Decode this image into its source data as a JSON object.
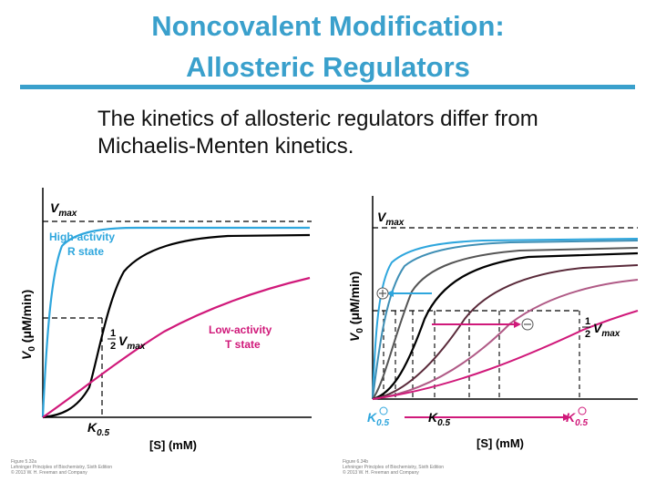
{
  "slide": {
    "title_line1": "Noncovalent Modification:",
    "title_line2": "Allosteric Regulators",
    "subtitle_line1": "The kinetics of allosteric regulators differ from",
    "subtitle_line2": "Michaelis-Menten kinetics."
  },
  "colors": {
    "title": "#3aa0cc",
    "r_state": "#2ea6dd",
    "t_state": "#d0197a",
    "michaelis": "#000000"
  },
  "left_panel": {
    "vmax_main": "V",
    "vmax_sub": "max",
    "r_state_line1": "High-activity",
    "r_state_line2": "R state",
    "t_state_line1": "Low-activity",
    "t_state_line2": "T state",
    "half_num": "1",
    "half_den": "2",
    "half_v": "V",
    "half_sub": "max",
    "k_main": "K",
    "k_sub": "0.5",
    "xlabel": "[S] (mM)",
    "ylabel_v": "V",
    "ylabel_sub": "0",
    "ylabel_rest": " (μM/min)",
    "caption_line1": "Figure 5.32a",
    "caption_line2": "Lehninger Principles of Biochemistry, Sixth Edition",
    "caption_line3": "© 2013 W. H. Freeman and Company"
  },
  "right_panel": {
    "vmax_main": "V",
    "vmax_sub": "max",
    "half_num": "1",
    "half_den": "2",
    "half_v": "V",
    "half_sub": "max",
    "k_main": "K",
    "k_sub": "0.5",
    "xlabel": "[S] (mM)",
    "ylabel_v": "V",
    "ylabel_sub": "0",
    "ylabel_rest": " (μM/min)",
    "caption_line1": "Figure 6.34b",
    "caption_line2": "Lehninger Principles of Biochemistry, Sixth Edition",
    "caption_line3": "© 2013 W. H. Freeman and Company"
  }
}
